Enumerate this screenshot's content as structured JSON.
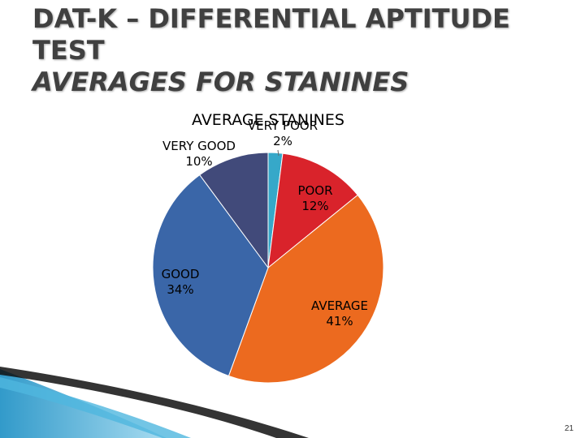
{
  "slide": {
    "title_line1": "DAT-K – DIFFERENTIAL APTITUDE",
    "title_line2": "TEST",
    "title_line3": "AVERAGES FOR STANINES",
    "page_number": "21"
  },
  "chart_data": {
    "type": "pie",
    "title": "AVERAGE STANINES",
    "slices": [
      {
        "label": "VERY POOR",
        "value": 2,
        "value_label": "2%",
        "color": "#36a8c9"
      },
      {
        "label": "POOR",
        "value": 12,
        "value_label": "12%",
        "color": "#d9232b"
      },
      {
        "label": "AVERAGE",
        "value": 41,
        "value_label": "41%",
        "color": "#ec6a1f"
      },
      {
        "label": "GOOD",
        "value": 34,
        "value_label": "34%",
        "color": "#3a66a8"
      },
      {
        "label": "VERY GOOD",
        "value": 10,
        "value_label": "10%",
        "color": "#414a7a"
      }
    ],
    "legend": "none"
  }
}
